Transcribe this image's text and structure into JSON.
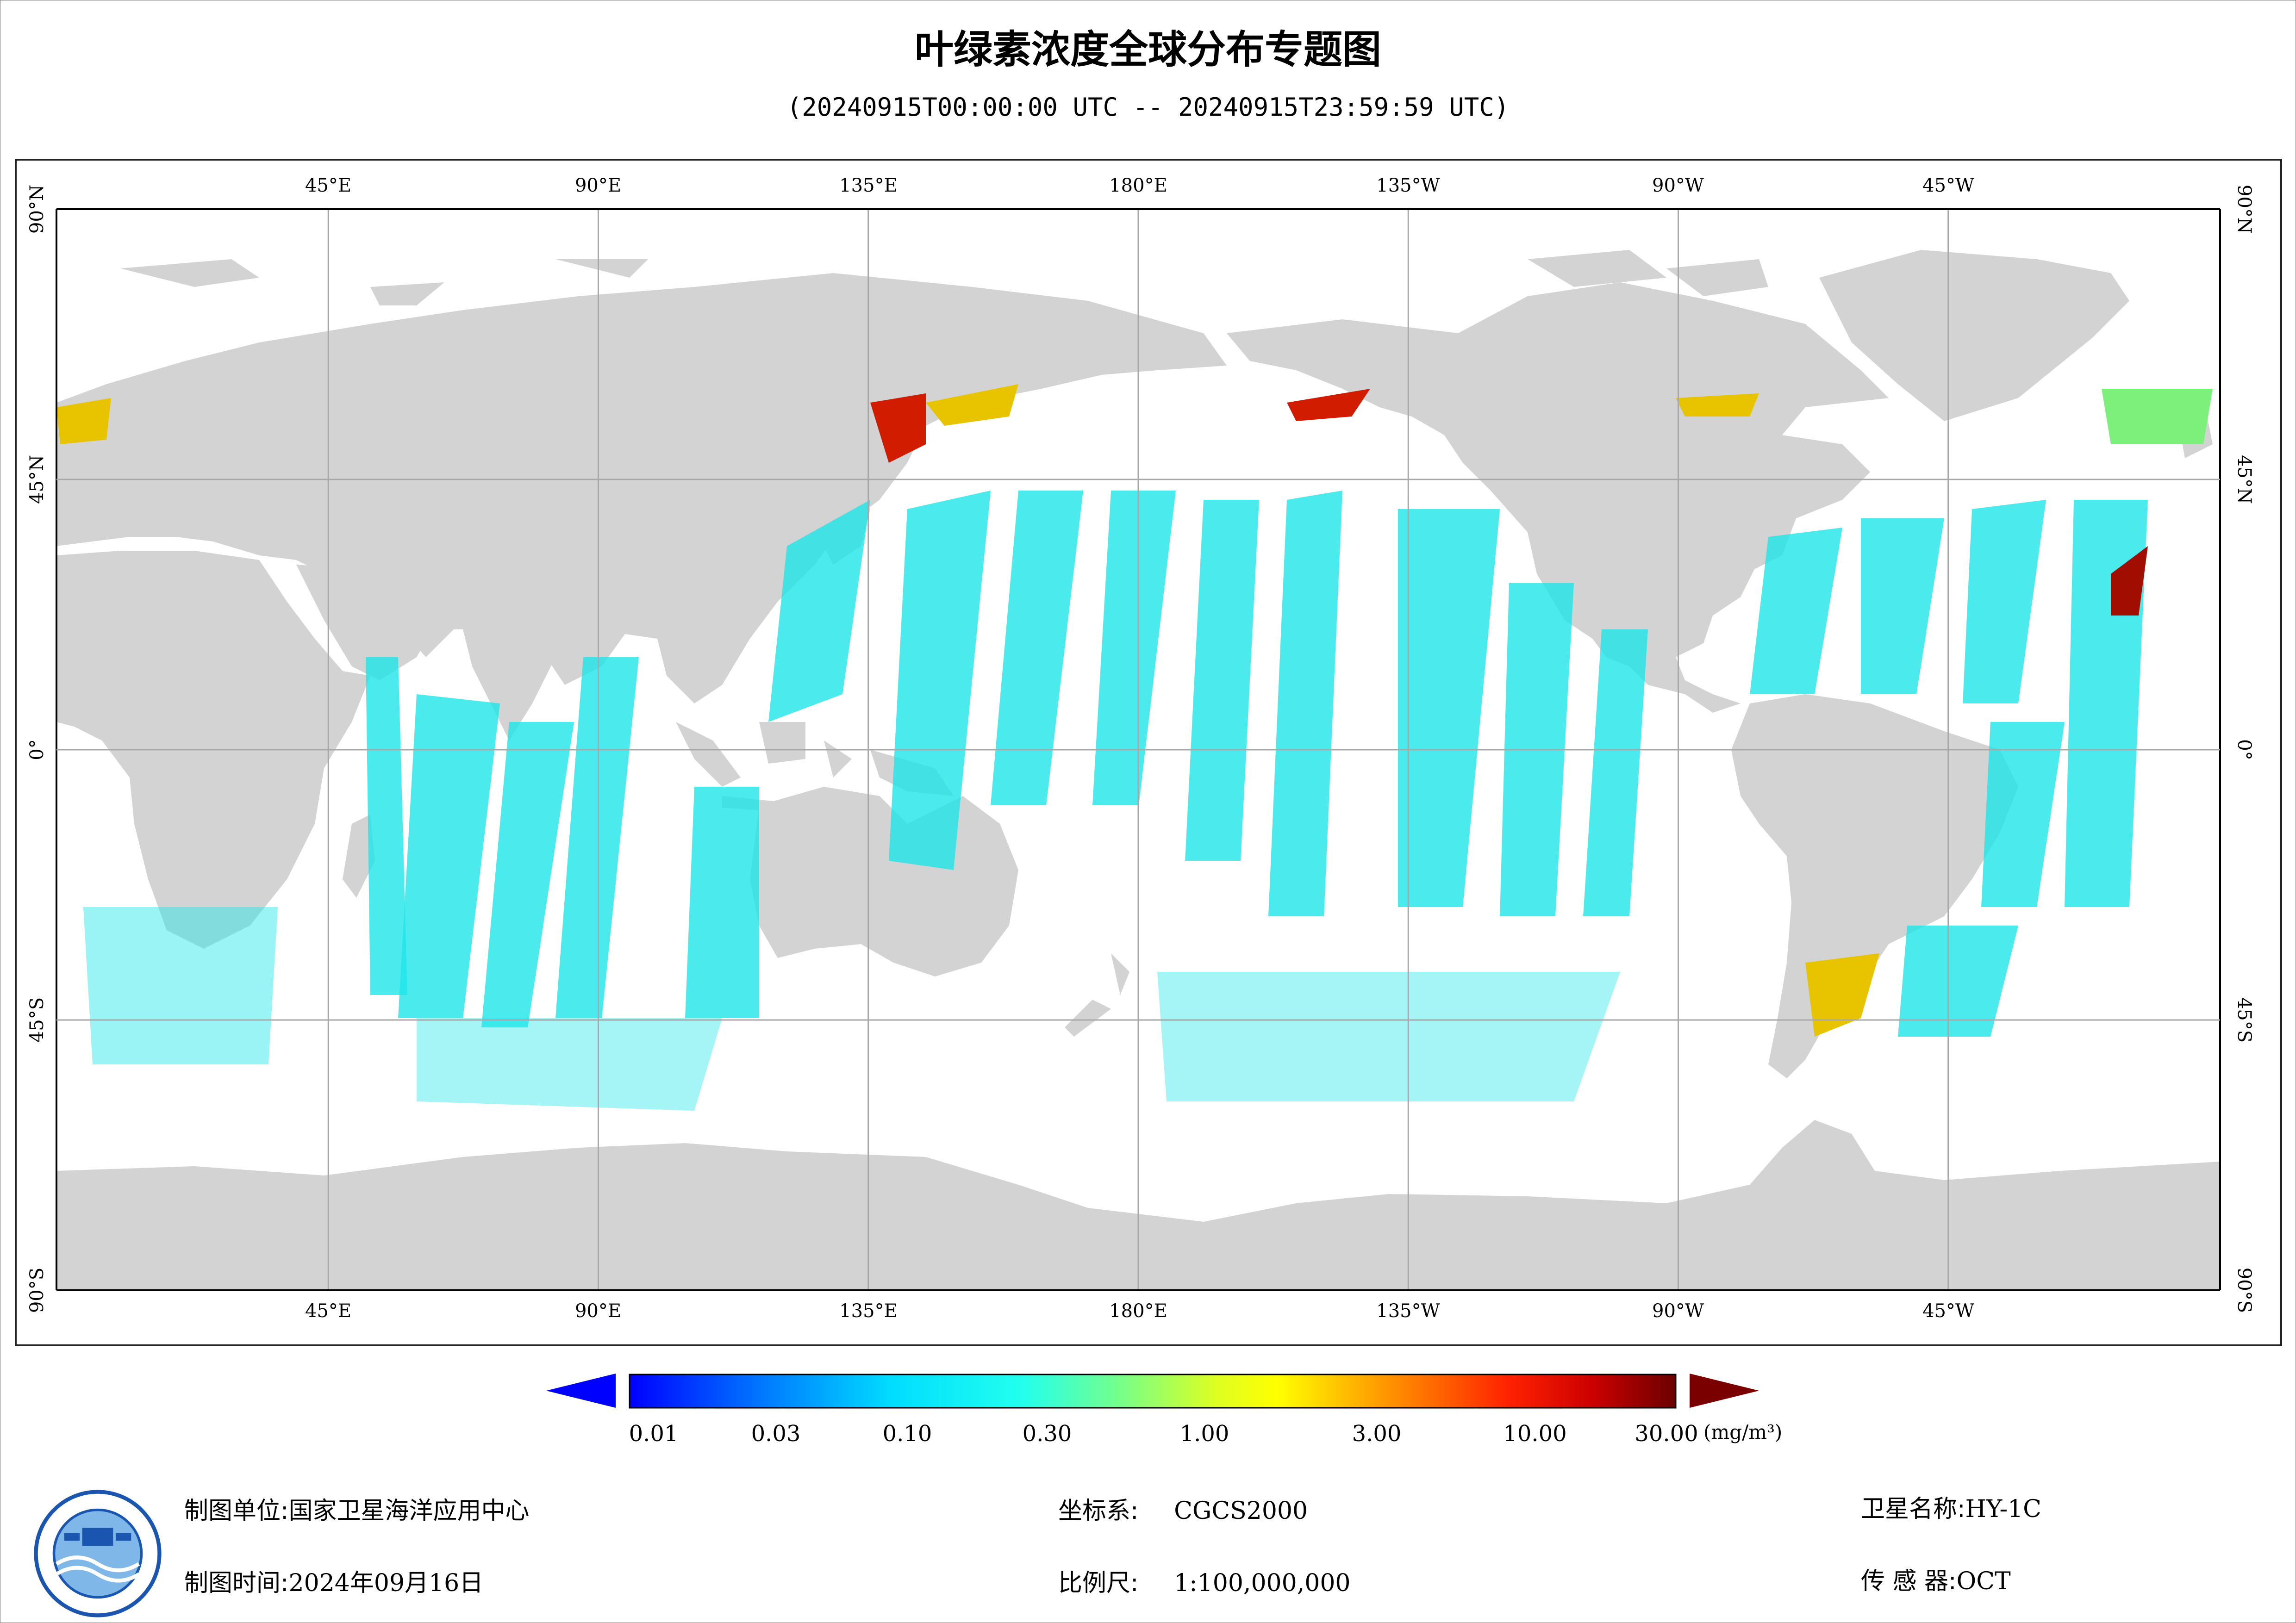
{
  "header": {
    "title": "叶绿素浓度全球分布专题图",
    "subtitle": "(20240915T00:00:00 UTC -- 20240915T23:59:59 UTC)"
  },
  "map": {
    "lon_labels_top": [
      "45°E",
      "90°E",
      "135°E",
      "180°E",
      "135°W",
      "90°W",
      "45°W"
    ],
    "lon_labels_bottom": [
      "45°E",
      "90°E",
      "135°E",
      "180°E",
      "135°W",
      "90°W",
      "45°W"
    ],
    "lat_labels_left": [
      "90°N",
      "45°N",
      "0°",
      "45°S",
      "90°S"
    ],
    "lat_labels_right": [
      "90°N",
      "45°N",
      "0°",
      "45°S",
      "90°S"
    ],
    "colors": {
      "land": "#d3d3d3",
      "ocean": "#ffffff",
      "grid": "#a8a8a8",
      "chl_low": "#00e5ff",
      "chl_mid": "#7cf07a",
      "chl_high": "#ff3a00",
      "chl_max": "#7a0000"
    }
  },
  "legend": {
    "labels": [
      "0.01",
      "0.03",
      "0.10",
      "0.30",
      "1.00",
      "3.00",
      "10.00",
      "30.00"
    ],
    "unit": "(mg/m³)",
    "colors": [
      "#0000ff",
      "#0077ff",
      "#00ccff",
      "#00ffee",
      "#66ff99",
      "#ccff33",
      "#ffff00",
      "#ffbb00",
      "#ff6600",
      "#ff1a00",
      "#cc0000",
      "#6b0000"
    ],
    "under_color": "#0000ff",
    "over_color": "#7a0000"
  },
  "footer": {
    "unit_label": "制图单位:",
    "unit_value": "国家卫星海洋应用中心",
    "time_label": "制图时间:",
    "time_value": "2024年09月16日",
    "crs_label": "坐标系:",
    "crs_value": "CGCS2000",
    "scale_label": "比例尺:",
    "scale_value": "1:100,000,000",
    "sat_label": "卫星名称:",
    "sat_value": "HY-1C",
    "sensor_label": "传 感 器:",
    "sensor_value": "OCT"
  },
  "logo": {
    "icon": "nsoas-emblem-icon"
  }
}
